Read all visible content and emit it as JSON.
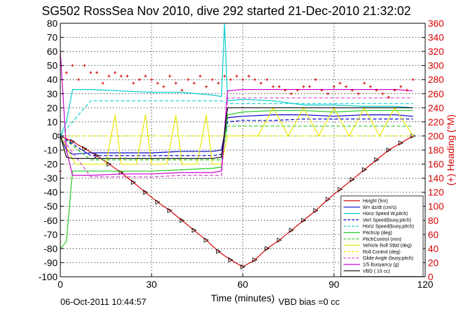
{
  "chart_data": {
    "type": "line",
    "title": "SG502 RossSea Nov 2010, dive 292 started 21-Dec-2010 21:32:02",
    "xlabel": "Time (minutes)",
    "ylabel_right": "(+) Heading (°M)",
    "footer_left": "06-Oct-2011 10:44:57",
    "footer_right": "VBD bias =0 cc",
    "xlim": [
      0,
      120
    ],
    "ylim": [
      -100,
      80
    ],
    "ylim_right": [
      0,
      360
    ],
    "x_ticks": [
      0,
      30,
      60,
      90,
      120
    ],
    "y_ticks": [
      80,
      70,
      60,
      50,
      40,
      30,
      20,
      10,
      0,
      -10,
      -20,
      -30,
      -40,
      -50,
      -60,
      -70,
      -80,
      -90,
      -100
    ],
    "y_ticks_right": [
      360,
      340,
      320,
      300,
      280,
      260,
      240,
      220,
      200,
      180,
      160,
      140,
      120,
      100,
      80,
      60,
      40,
      20,
      0
    ],
    "grid": true,
    "legend_position": "bottom-right",
    "series": [
      {
        "name": "Height (5m)",
        "color": "#d40000",
        "style": "solid",
        "marker": "triangle",
        "x": [
          0,
          4,
          8,
          12,
          16,
          20,
          24,
          28,
          32,
          36,
          40,
          44,
          48,
          52,
          56,
          60,
          64,
          68,
          72,
          76,
          80,
          84,
          88,
          92,
          96,
          100,
          104,
          108,
          112,
          116
        ],
        "y": [
          0,
          -4,
          -9,
          -14,
          -20,
          -26,
          -33,
          -40,
          -47,
          -53,
          -60,
          -67,
          -74,
          -82,
          -88,
          -93,
          -88,
          -80,
          -74,
          -67,
          -60,
          -53,
          -45,
          -38,
          -31,
          -24,
          -17,
          -10,
          -5,
          0
        ]
      },
      {
        "name": "W= dz/dt (cm/s)",
        "color": "#0000cc",
        "style": "solid",
        "x": [
          0,
          2,
          4,
          10,
          20,
          30,
          40,
          50,
          53,
          55,
          60,
          70,
          80,
          90,
          100,
          110,
          116
        ],
        "y": [
          0,
          -10,
          -13,
          -12,
          -12,
          -12,
          -11,
          -11,
          -10,
          13,
          14,
          15,
          15,
          14,
          15,
          15,
          14
        ]
      },
      {
        "name": "Horiz Speed W,pitch)",
        "color": "#00cccc",
        "style": "solid",
        "x": [
          0,
          2,
          4,
          10,
          20,
          30,
          40,
          50,
          53,
          54,
          55,
          60,
          70,
          80,
          90,
          100,
          110,
          116
        ],
        "y": [
          0,
          10,
          33,
          33,
          32,
          31,
          31,
          29,
          28,
          80,
          25,
          26,
          25,
          22,
          22,
          21,
          21,
          20
        ]
      },
      {
        "name": "Vert Speed(buoy,pitch)",
        "color": "#0000cc",
        "style": "dashed",
        "x": [
          0,
          10,
          20,
          30,
          40,
          50,
          53,
          55,
          60,
          70,
          80,
          90,
          100,
          110,
          116
        ],
        "y": [
          0,
          -14,
          -14,
          -14,
          -14,
          -14,
          -13,
          10,
          11,
          11,
          12,
          12,
          12,
          12,
          12
        ]
      },
      {
        "name": "Horiz Speed(buoy,pitch)",
        "color": "#00cccc",
        "style": "dashed",
        "x": [
          0,
          10,
          20,
          30,
          40,
          50,
          53,
          55,
          60,
          70,
          80,
          90,
          100,
          110,
          116
        ],
        "y": [
          0,
          25,
          25,
          25,
          25,
          25,
          25,
          23,
          23,
          23,
          23,
          23,
          23,
          23,
          23
        ]
      },
      {
        "name": "PitchUp (deg)",
        "color": "#22cc22",
        "style": "solid",
        "x": [
          0,
          2,
          4,
          10,
          20,
          30,
          40,
          50,
          53,
          55,
          60,
          70,
          80,
          90,
          100,
          110,
          116
        ],
        "y": [
          -80,
          -75,
          -25,
          -25,
          -25,
          -25,
          -24,
          -23,
          -22,
          15,
          17,
          18,
          18,
          17,
          18,
          18,
          18
        ]
      },
      {
        "name": "PitchControl (mm)",
        "color": "#22cc22",
        "style": "dashed",
        "x": [
          0,
          10,
          20,
          30,
          40,
          50,
          53,
          55,
          60,
          70,
          80,
          90,
          100,
          110,
          116
        ],
        "y": [
          0,
          -17,
          -17,
          -17,
          -17,
          -17,
          -17,
          7,
          7,
          7,
          7,
          7,
          7,
          7,
          7
        ]
      },
      {
        "name": "Vehicle Roll Stbd (deg)",
        "color": "#e8e800",
        "style": "solid",
        "x": [
          0,
          5,
          10,
          15,
          18,
          20,
          25,
          28,
          30,
          35,
          38,
          40,
          45,
          48,
          50,
          53,
          55,
          58,
          60,
          65,
          70,
          75,
          80,
          85,
          90,
          95,
          100,
          105,
          110,
          116
        ],
        "y": [
          0,
          -20,
          -20,
          -20,
          15,
          -20,
          -20,
          15,
          -20,
          -20,
          15,
          -20,
          -20,
          15,
          -20,
          -20,
          0,
          0,
          0,
          0,
          20,
          0,
          20,
          0,
          20,
          0,
          20,
          0,
          20,
          0
        ]
      },
      {
        "name": "Roll Control (deg)",
        "color": "#e8e800",
        "style": "dashed",
        "x": [
          0,
          10,
          20,
          30,
          40,
          50,
          53,
          55,
          60,
          70,
          80,
          90,
          100,
          110,
          116
        ],
        "y": [
          0,
          0,
          0,
          0,
          0,
          0,
          0,
          0,
          0,
          0,
          0,
          0,
          0,
          0,
          0
        ]
      },
      {
        "name": "Glide Angle (buoy,pitch)",
        "color": "#cc44cc",
        "style": "dashed",
        "x": [
          0,
          10,
          20,
          30,
          40,
          50,
          53,
          55,
          60,
          70,
          80,
          90,
          100,
          110,
          116
        ],
        "y": [
          0,
          -29,
          -29,
          -29,
          -28,
          -28,
          -28,
          27,
          27,
          27,
          27,
          27,
          27,
          27,
          27
        ]
      },
      {
        "name": "1/5 Buoyancy (g)",
        "color": "#cc00cc",
        "style": "solid",
        "x": [
          0,
          2,
          4,
          10,
          20,
          30,
          40,
          50,
          53,
          55,
          60,
          70,
          80,
          90,
          100,
          110,
          116
        ],
        "y": [
          60,
          -10,
          -28,
          -28,
          -27,
          -27,
          -26,
          -26,
          -25,
          32,
          33,
          33,
          33,
          33,
          33,
          33,
          32
        ]
      },
      {
        "name": "VBD ( 10 cc)",
        "color": "#000000",
        "style": "solid",
        "x": [
          0,
          2,
          4,
          10,
          20,
          30,
          40,
          50,
          53,
          55,
          60,
          70,
          80,
          90,
          100,
          110,
          116
        ],
        "y": [
          0,
          -15,
          -16,
          -16,
          -16,
          -16,
          -16,
          -16,
          -15,
          20,
          20,
          20,
          20,
          20,
          20,
          20,
          20
        ]
      }
    ],
    "heading_series": {
      "name": "Heading",
      "color": "#d40000",
      "marker": "plus",
      "axis": "right",
      "x": [
        0,
        2,
        4,
        6,
        8,
        10,
        12,
        14,
        16,
        18,
        20,
        22,
        24,
        26,
        28,
        30,
        32,
        34,
        36,
        38,
        40,
        42,
        44,
        46,
        48,
        50,
        52,
        54,
        56,
        58,
        60,
        62,
        64,
        66,
        68,
        70,
        72,
        74,
        76,
        78,
        80,
        82,
        84,
        86,
        88,
        90,
        92,
        94,
        96,
        98,
        100,
        102,
        104,
        106,
        108,
        110,
        112,
        114,
        116
      ],
      "y": [
        150,
        290,
        300,
        280,
        300,
        290,
        290,
        275,
        285,
        290,
        285,
        285,
        275,
        280,
        285,
        280,
        275,
        270,
        285,
        275,
        265,
        280,
        275,
        285,
        270,
        280,
        275,
        285,
        280,
        285,
        280,
        285,
        280,
        275,
        280,
        270,
        270,
        265,
        260,
        265,
        270,
        270,
        280,
        265,
        260,
        270,
        275,
        270,
        265,
        260,
        275,
        270,
        265,
        260,
        255,
        265,
        270,
        265,
        280
      ]
    }
  }
}
